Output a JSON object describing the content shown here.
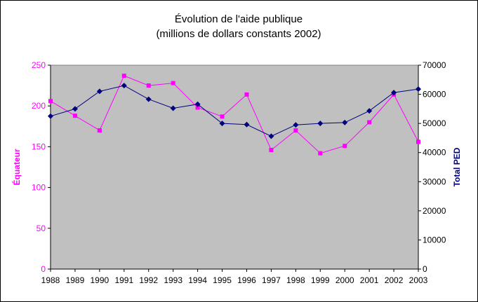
{
  "chart_data": {
    "type": "line",
    "title_line1": "Évolution de l'aide publique",
    "title_line2": "(millions de dollars constants 2002)",
    "xlabel": "",
    "ylabel_left": "Équateur",
    "ylabel_right": "Total PED",
    "categories": [
      "1988",
      "1989",
      "1990",
      "1991",
      "1992",
      "1993",
      "1994",
      "1995",
      "1996",
      "1997",
      "1998",
      "1999",
      "2000",
      "2001",
      "2002",
      "2003"
    ],
    "ylim_left": [
      0,
      250
    ],
    "yticks_left": [
      "0",
      "50",
      "100",
      "150",
      "200",
      "250"
    ],
    "ylim_right": [
      0,
      70000
    ],
    "yticks_right": [
      "0",
      "10000",
      "20000",
      "30000",
      "40000",
      "50000",
      "60000",
      "70000"
    ],
    "grid": false,
    "plot_background": "#c0c0c0",
    "series": [
      {
        "name": "Équateur",
        "axis": "left",
        "color": "#ff00ff",
        "marker": "square",
        "values": [
          206,
          188,
          170,
          237,
          225,
          228,
          198,
          187,
          214,
          146,
          170,
          142,
          151,
          180,
          214,
          156
        ]
      },
      {
        "name": "Total PED",
        "axis": "right",
        "color": "#000080",
        "marker": "diamond",
        "values": [
          52500,
          55000,
          61000,
          63000,
          58300,
          55200,
          56600,
          50000,
          49600,
          45600,
          49500,
          50000,
          50300,
          54300,
          60600,
          61800
        ]
      }
    ]
  }
}
